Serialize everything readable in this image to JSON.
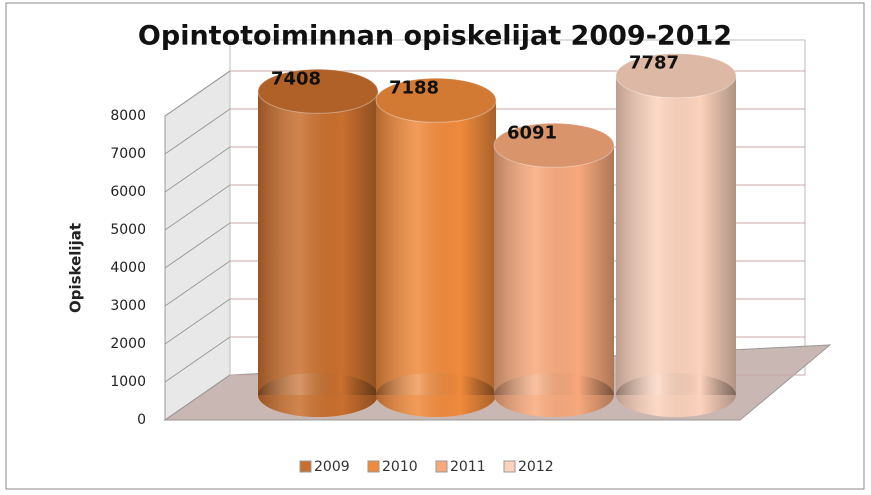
{
  "chart_data": {
    "type": "bar",
    "title": "Opintotoiminnan opiskelijat 2009-2012",
    "y_label": "Opiskelijat",
    "series": [
      {
        "name": "2009",
        "color": "#c96f2e",
        "values": [
          7408
        ]
      },
      {
        "name": "2010",
        "color": "#f08a3c",
        "values": [
          7188
        ]
      },
      {
        "name": "2011",
        "color": "#f8a97c",
        "values": [
          6091
        ]
      },
      {
        "name": "2012",
        "color": "#fcd2bc",
        "values": [
          7787
        ]
      }
    ],
    "ylim": [
      0,
      8000
    ],
    "yticks": [
      0,
      1000,
      2000,
      3000,
      4000,
      5000,
      6000,
      7000,
      8000
    ],
    "grid": true,
    "legend": "bottom"
  }
}
